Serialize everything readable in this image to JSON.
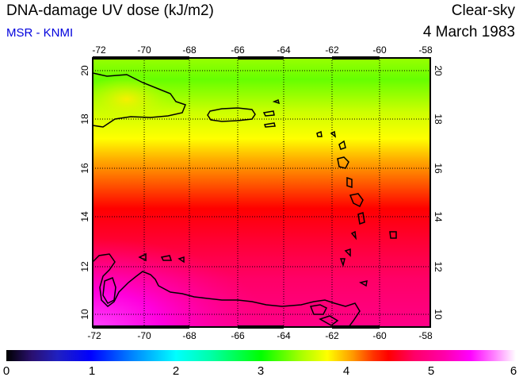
{
  "header": {
    "title": "DNA-damage UV dose (kJ/m2)",
    "credit": "MSR - KNMI",
    "condition": "Clear-sky",
    "date": "4 March 1983"
  },
  "map": {
    "lon_ticks": [
      "-72",
      "-70",
      "-68",
      "-66",
      "-64",
      "-62",
      "-60",
      "-58"
    ],
    "lat_ticks": [
      "10",
      "12",
      "14",
      "16",
      "18",
      "20"
    ],
    "lon_range": [
      -72,
      -58
    ],
    "lat_range": [
      9.5,
      20.5
    ]
  },
  "colorbar": {
    "ticks": [
      "0",
      "1",
      "2",
      "3",
      "4",
      "5",
      "6"
    ],
    "range": [
      0,
      6
    ]
  }
}
